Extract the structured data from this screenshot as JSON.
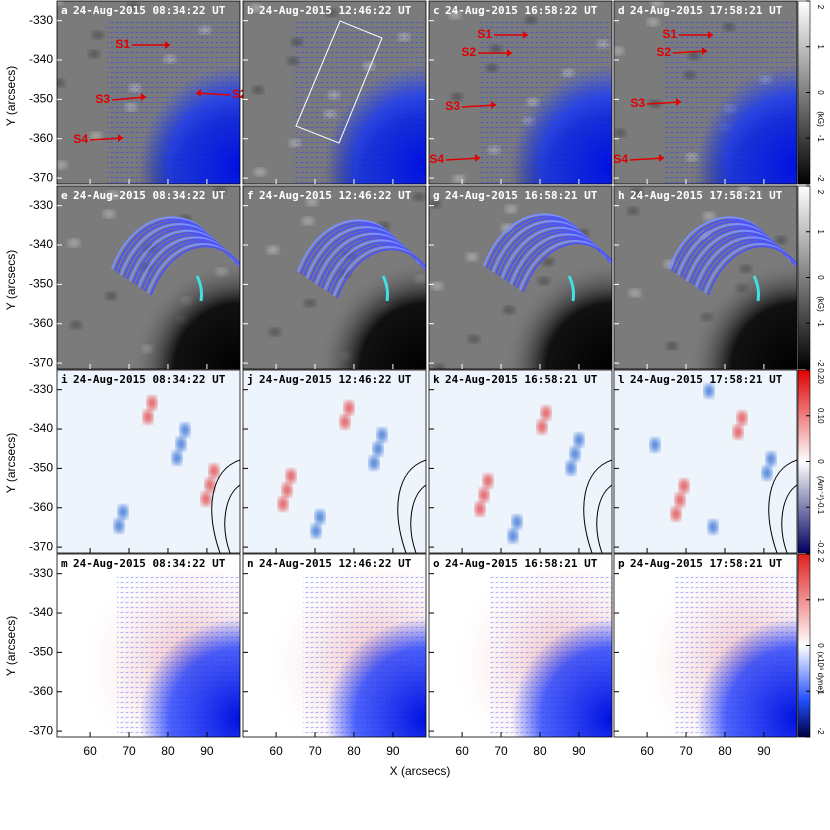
{
  "figure": {
    "xlabel": "X (arcsecs)",
    "ylabel": "Y (arcsecs)",
    "xlim": [
      51.5,
      98.5
    ],
    "ylim": [
      -371.5,
      -325
    ],
    "xticks": [
      60,
      70,
      80,
      90
    ],
    "yticks": [
      -370,
      -360,
      -350,
      -340,
      -330
    ],
    "panels": [
      {
        "label": "a",
        "time": "24-Aug-2015 08:34:22 UT",
        "annotations": [
          "S1",
          "S3",
          "S2",
          "S4"
        ]
      },
      {
        "label": "b",
        "time": "24-Aug-2015 12:46:22 UT"
      },
      {
        "label": "c",
        "time": "24-Aug-2015 16:58:22 UT",
        "annotations": [
          "S1",
          "S2",
          "S3",
          "S4"
        ]
      },
      {
        "label": "d",
        "time": "24-Aug-2015 17:58:21 UT",
        "annotations": [
          "S1",
          "S2",
          "S3",
          "S4"
        ]
      },
      {
        "label": "e",
        "time": "24-Aug-2015 08:34:22 UT"
      },
      {
        "label": "f",
        "time": "24-Aug-2015 12:46:22 UT"
      },
      {
        "label": "g",
        "time": "24-Aug-2015 16:58:21 UT"
      },
      {
        "label": "h",
        "time": "24-Aug-2015 17:58:21 UT"
      },
      {
        "label": "i",
        "time": "24-Aug-2015 08:34:22 UT"
      },
      {
        "label": "j",
        "time": "24-Aug-2015 12:46:22 UT"
      },
      {
        "label": "k",
        "time": "24-Aug-2015 16:58:21 UT"
      },
      {
        "label": "l",
        "time": "24-Aug-2015 17:58:21 UT"
      },
      {
        "label": "m",
        "time": "24-Aug-2015 08:34:22 UT"
      },
      {
        "label": "n",
        "time": "24-Aug-2015 12:46:22 UT"
      },
      {
        "label": "o",
        "time": "24-Aug-2015 16:58:21 UT"
      },
      {
        "label": "p",
        "time": "24-Aug-2015 17:58:21 UT"
      }
    ],
    "colorbars": [
      {
        "label": "(kG)",
        "lim": [
          -2,
          2
        ],
        "ticks": [
          -2,
          -1,
          0,
          1,
          2
        ]
      },
      {
        "label": "(kG)",
        "lim": [
          -2,
          2
        ],
        "ticks": [
          -2,
          -1,
          0,
          1,
          2
        ]
      },
      {
        "label": "(Am⁻²)",
        "lim": [
          -0.2,
          0.2
        ],
        "ticks": [
          -0.2,
          -0.1,
          0,
          {
            "value": 0.1,
            "label": "0.10"
          },
          {
            "value": 0.2,
            "label": "0.20"
          }
        ]
      },
      {
        "label": "(x10⁸ dyne)",
        "lim": [
          -2,
          2
        ],
        "ticks": [
          -2,
          -1,
          0,
          1,
          2
        ]
      }
    ]
  }
}
